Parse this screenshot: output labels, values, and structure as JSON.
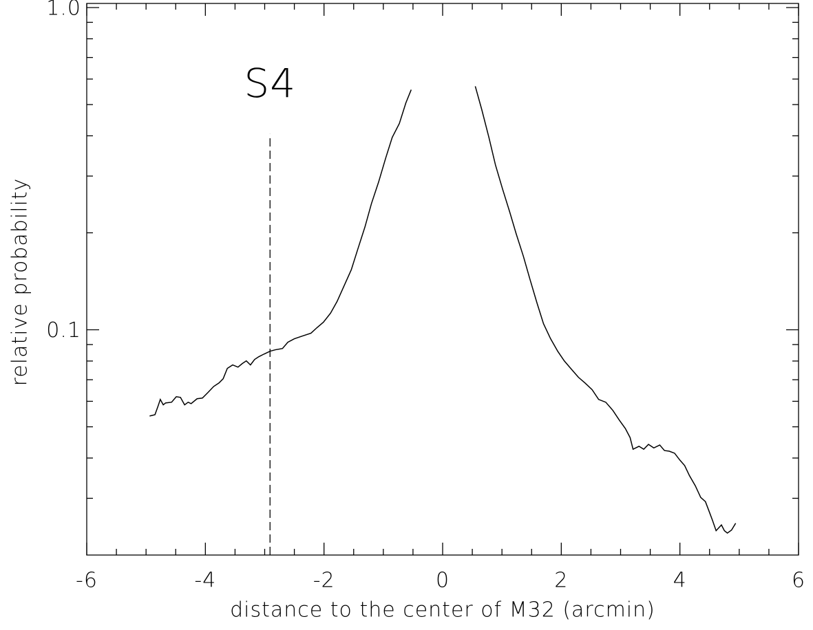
{
  "chart_data": {
    "type": "line",
    "xlabel": "distance to the center of M32 (arcmin)",
    "ylabel": "relative probability",
    "color": "#000000",
    "log_y": true,
    "xlim": [
      -6,
      6
    ],
    "xticks": [
      -6,
      -4,
      -2,
      0,
      2,
      4,
      6
    ],
    "xminor_ticks": [
      -5.5,
      -5,
      -4.5,
      -3.5,
      -3,
      -2.5,
      -1.5,
      -1,
      -0.5,
      0.5,
      1,
      1.5,
      2.5,
      3,
      3.5,
      4.5,
      5,
      5.5
    ],
    "ylim": [
      0.02,
      1.03
    ],
    "yticks": [
      0.1,
      {
        "value": 1,
        "label": "1.0"
      }
    ],
    "yminor_ticks": [
      0.03,
      0.04,
      0.05,
      0.06,
      0.07,
      0.08,
      0.09,
      0.2,
      0.3,
      0.4,
      0.5,
      0.6,
      0.7,
      0.8,
      0.9
    ],
    "vline": {
      "x": -2.91,
      "top": 0.405,
      "label": "S4"
    },
    "x": [
      -4.94,
      -4.85,
      -4.8,
      -4.76,
      -4.71,
      -4.67,
      -4.57,
      -4.49,
      -4.42,
      -4.35,
      -4.29,
      -4.24,
      -4.14,
      -4.05,
      -3.96,
      -3.86,
      -3.77,
      -3.7,
      -3.63,
      -3.54,
      -3.45,
      -3.38,
      -3.31,
      -3.24,
      -3.17,
      -3.1,
      -3.01,
      -2.91,
      -2.82,
      -2.7,
      -2.61,
      -2.5,
      -2.36,
      -2.22,
      -2.12,
      -2.01,
      -1.89,
      -1.78,
      -1.66,
      -1.54,
      -1.43,
      -1.31,
      -1.2,
      -1.08,
      -0.96,
      -0.85,
      -0.73,
      -0.62,
      -0.53,
      0,
      0.55,
      0.66,
      0.78,
      0.89,
      1.01,
      1.13,
      1.24,
      1.36,
      1.47,
      1.59,
      1.7,
      1.82,
      1.94,
      2.05,
      2.17,
      2.29,
      2.4,
      2.52,
      2.63,
      2.75,
      2.87,
      2.98,
      3.08,
      3.16,
      3.21,
      3.31,
      3.39,
      3.47,
      3.56,
      3.66,
      3.74,
      3.82,
      3.91,
      4.0,
      4.08,
      4.16,
      4.26,
      4.35,
      4.43,
      4.49,
      4.55,
      4.61,
      4.7,
      4.75,
      4.8,
      4.87,
      4.94
    ],
    "values": [
      0.054,
      0.0545,
      0.0578,
      0.0608,
      0.0585,
      0.0593,
      0.0596,
      0.062,
      0.0617,
      0.0585,
      0.0596,
      0.059,
      0.0611,
      0.0614,
      0.0638,
      0.0667,
      0.0684,
      0.0705,
      0.0759,
      0.0778,
      0.0766,
      0.0785,
      0.0801,
      0.0778,
      0.0809,
      0.0825,
      0.0841,
      0.0858,
      0.0867,
      0.0875,
      0.0915,
      0.0938,
      0.0957,
      0.0976,
      0.1015,
      0.1056,
      0.1126,
      0.1224,
      0.1371,
      0.1536,
      0.178,
      0.2085,
      0.2465,
      0.2873,
      0.3412,
      0.3955,
      0.4367,
      0.506,
      0.556,
      null,
      0.57,
      0.482,
      0.3955,
      0.325,
      0.2735,
      0.2323,
      0.1985,
      0.1694,
      0.1439,
      0.1212,
      0.1045,
      0.0938,
      0.0858,
      0.0801,
      0.0755,
      0.0712,
      0.0684,
      0.0652,
      0.0608,
      0.0596,
      0.0562,
      0.0524,
      0.0494,
      0.0463,
      0.0426,
      0.0435,
      0.0426,
      0.0441,
      0.043,
      0.0439,
      0.0422,
      0.042,
      0.0414,
      0.0394,
      0.0379,
      0.0353,
      0.0328,
      0.0302,
      0.0293,
      0.0274,
      0.0256,
      0.0238,
      0.0248,
      0.0238,
      0.0234,
      0.0239,
      0.0251
    ]
  }
}
